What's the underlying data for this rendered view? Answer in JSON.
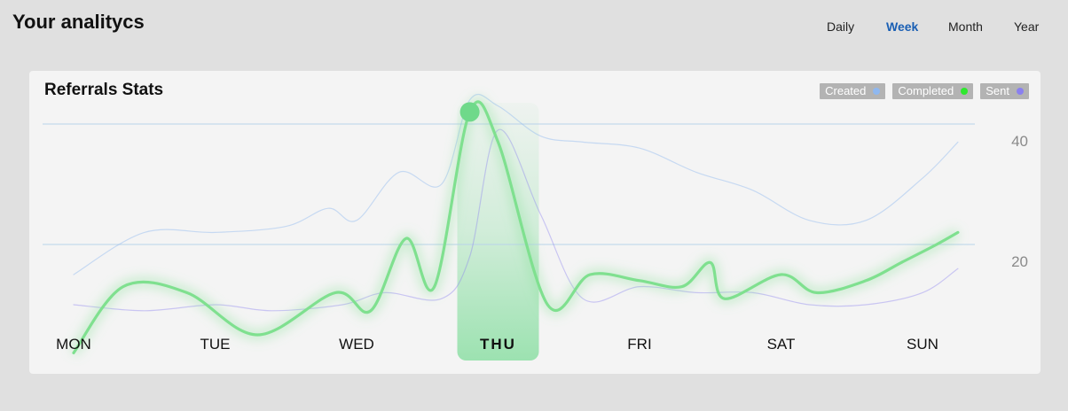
{
  "header": {
    "title": "Your analitycs",
    "periods": [
      "Daily",
      "Week",
      "Month",
      "Year"
    ],
    "active_period": "Week"
  },
  "colors": {
    "created": "#8fb8f0",
    "completed": "#2ee82e",
    "sent": "#8a80f0",
    "completed_line": "#7fe08f",
    "highlight": "#7fdc9a",
    "grid": "#b9d3ea",
    "active_period": "#1a5fb4"
  },
  "chart_data": {
    "type": "line",
    "title": "Referrals Stats",
    "categories": [
      "MON",
      "TUE",
      "WED",
      "THU",
      "FRI",
      "SAT",
      "SUN"
    ],
    "highlight_category": "THU",
    "legend": [
      "Created",
      "Completed",
      "Sent"
    ],
    "legend_position": "top-right",
    "yticks": [
      20,
      40
    ],
    "ylim": [
      0,
      45
    ],
    "grid": true,
    "series": [
      {
        "name": "Completed",
        "x": [
          0,
          0.35,
          0.8,
          1.3,
          1.85,
          2.1,
          2.35,
          2.55,
          2.8,
          3,
          3.35,
          3.65,
          4,
          4.3,
          4.5,
          4.6,
          5,
          5.25,
          5.6,
          5.85,
          6.1,
          6.25
        ],
        "values": [
          2,
          13,
          12,
          5,
          12,
          9,
          21,
          13,
          42,
          37,
          10,
          15,
          14,
          13,
          17,
          11,
          15,
          12,
          14,
          17,
          20,
          22
        ]
      },
      {
        "name": "Created",
        "x": [
          0,
          0.5,
          1,
          1.5,
          1.8,
          2,
          2.3,
          2.6,
          2.8,
          3,
          3.3,
          3.6,
          4,
          4.4,
          4.8,
          5.2,
          5.6,
          6,
          6.25
        ],
        "values": [
          15,
          22,
          22,
          23,
          26,
          24,
          32,
          30,
          44,
          43,
          38,
          37,
          36,
          32,
          29,
          24,
          24,
          31,
          37
        ]
      },
      {
        "name": "Sent",
        "x": [
          0,
          0.5,
          1,
          1.4,
          1.9,
          2.2,
          2.6,
          2.8,
          3,
          3.3,
          3.6,
          4,
          4.4,
          4.8,
          5.2,
          5.6,
          6,
          6.25
        ],
        "values": [
          10,
          9,
          10,
          9,
          10,
          12,
          11,
          18,
          39,
          25,
          11,
          13,
          12,
          12,
          10,
          10,
          12,
          16
        ]
      }
    ]
  }
}
